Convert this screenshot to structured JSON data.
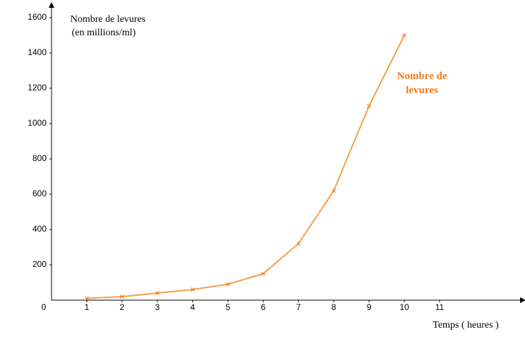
{
  "chart_data": {
    "type": "line",
    "ylabel": [
      "Nombre de levures",
      "(en millions/ml)"
    ],
    "xlabel": "Temps ( heures )",
    "x": [
      1,
      2,
      3,
      4,
      5,
      6,
      7,
      8,
      9,
      10
    ],
    "series": [
      {
        "name": "Nombre de levures",
        "color": "#f5a04a",
        "marker_color": "#f07c1e",
        "values": [
          10,
          20,
          40,
          60,
          90,
          150,
          320,
          620,
          1100,
          1500
        ]
      }
    ],
    "xlim": [
      0,
      13.4
    ],
    "ylim": [
      0,
      1680
    ],
    "xticks": [
      0,
      1,
      2,
      3,
      4,
      5,
      6,
      7,
      8,
      9,
      10,
      11
    ],
    "yticks": [
      200,
      400,
      600,
      800,
      1000,
      1200,
      1400,
      1600
    ]
  }
}
